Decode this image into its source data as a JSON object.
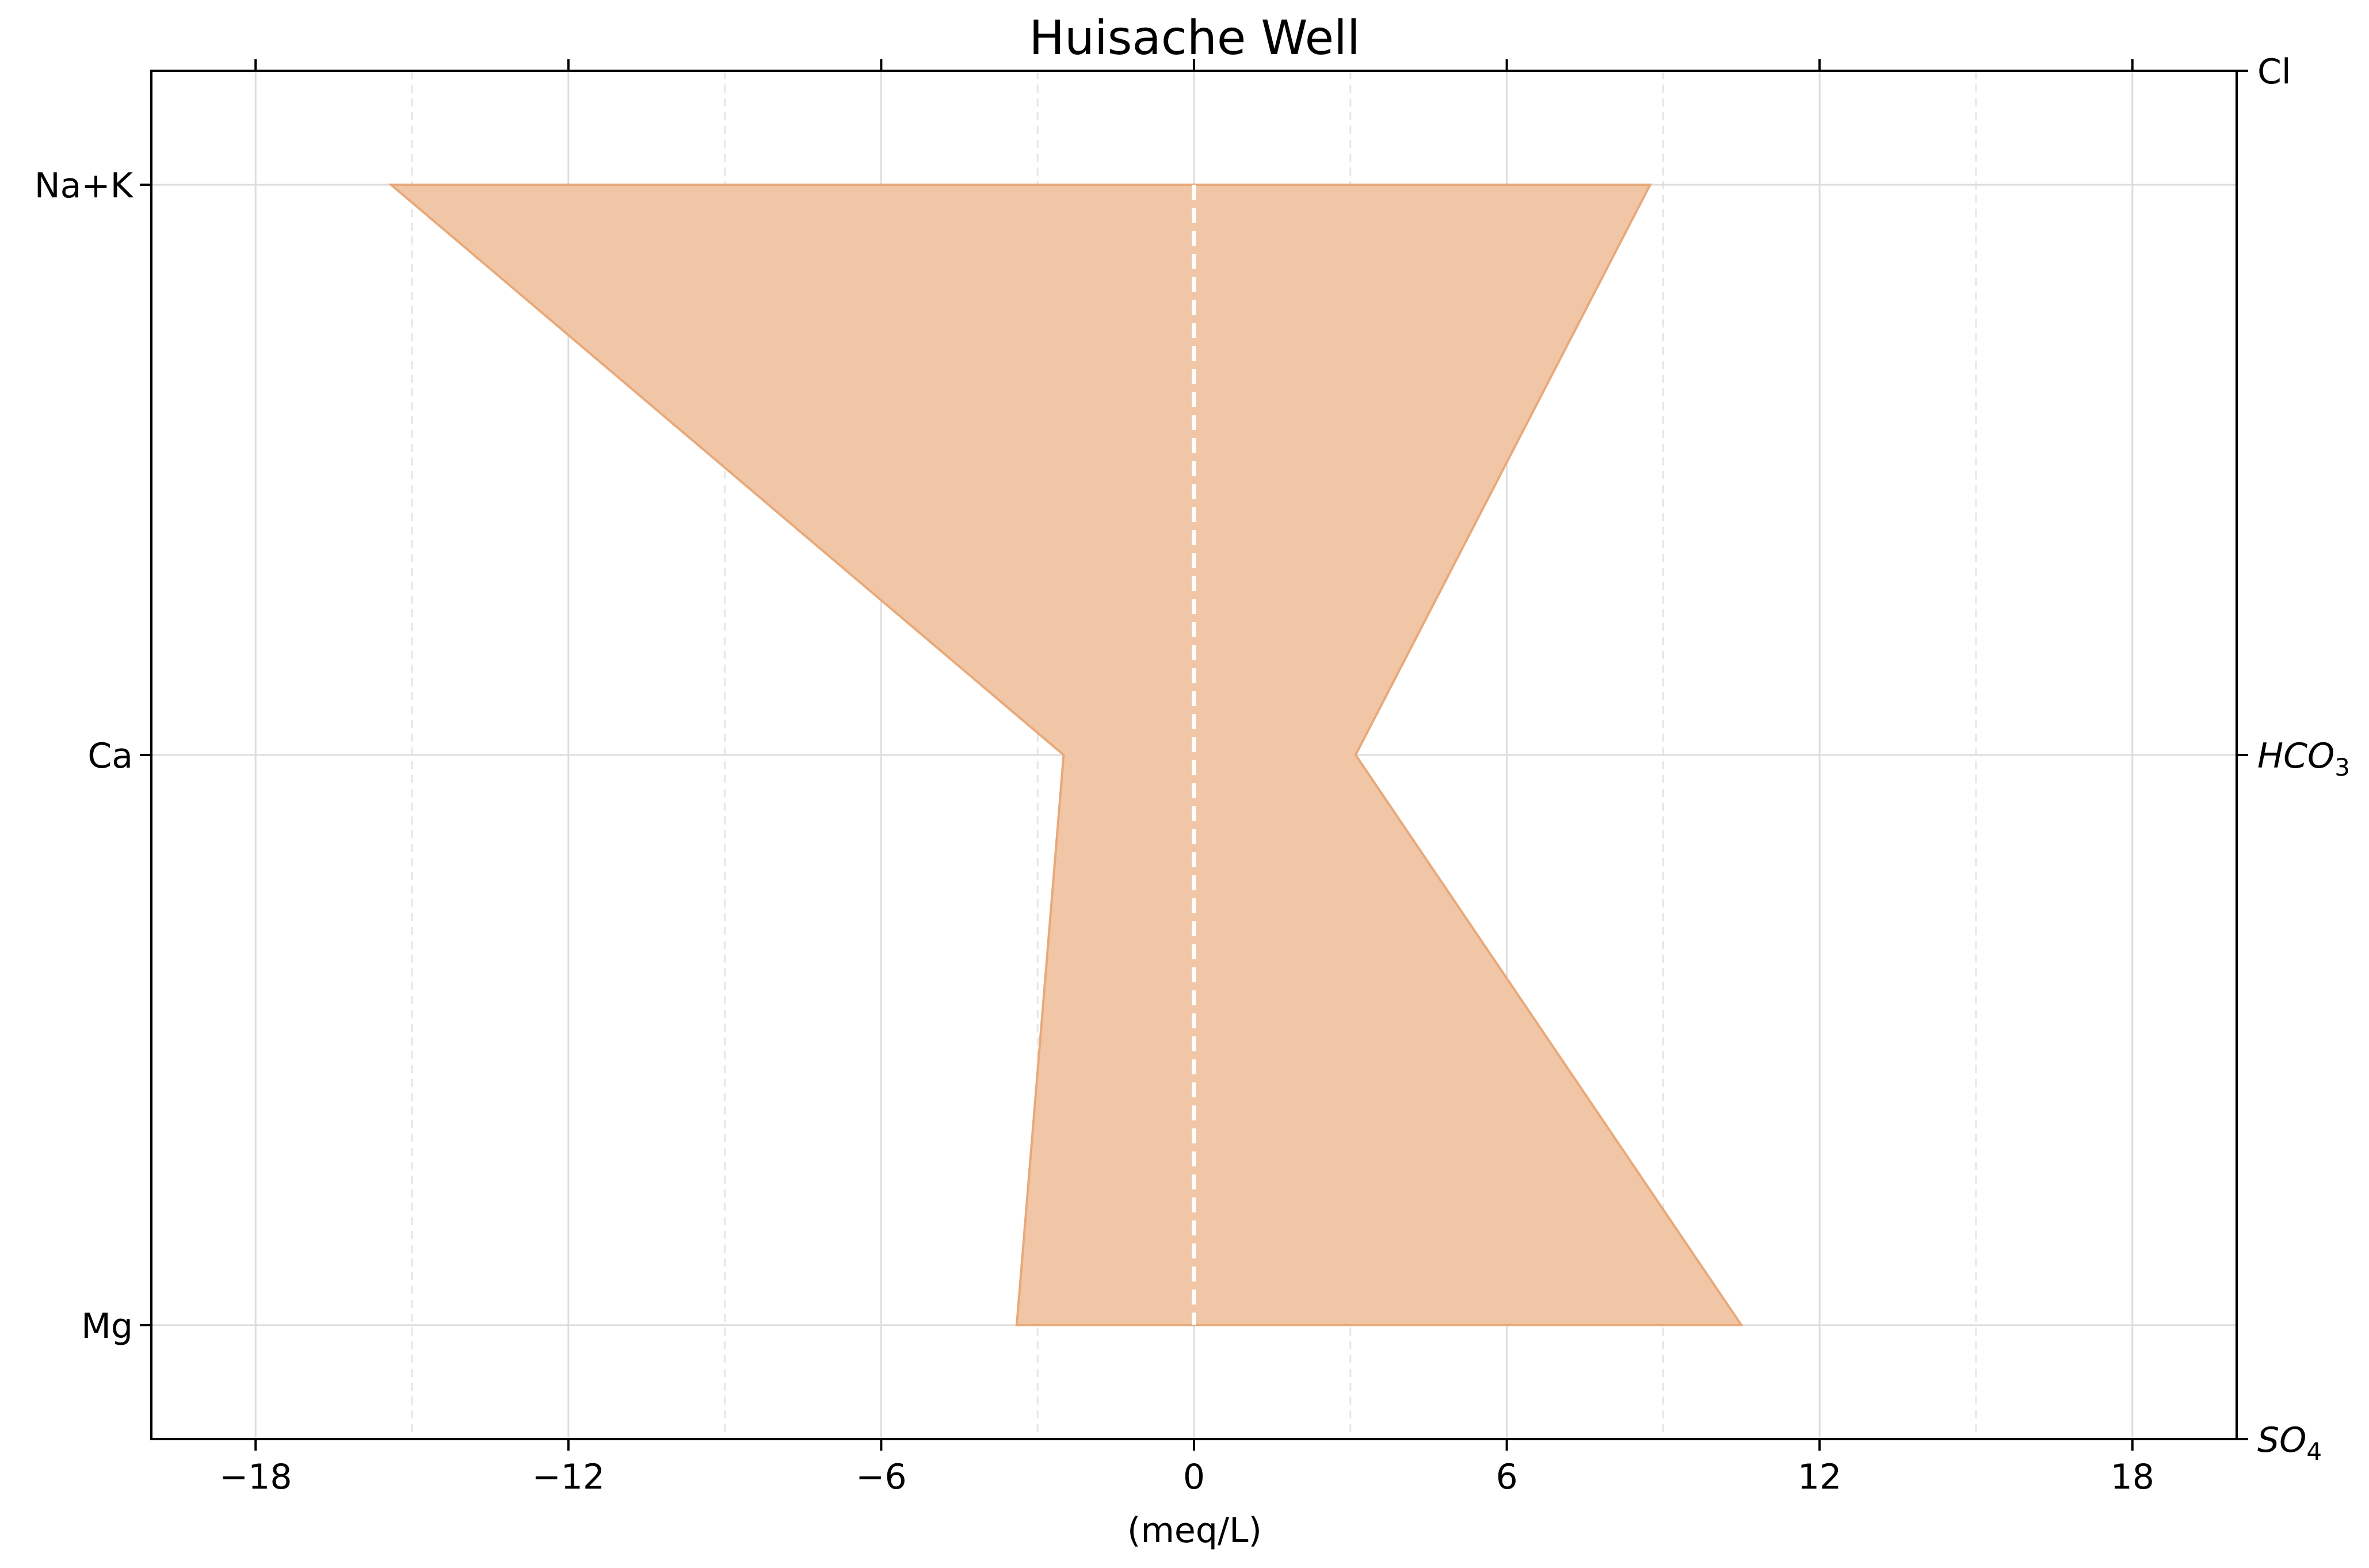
{
  "chart_data": {
    "type": "area",
    "title": "Huisache Well",
    "xlabel": "(meq/L)",
    "xlim": [
      -20,
      20
    ],
    "xticks": [
      -18,
      -12,
      -6,
      0,
      6,
      12,
      18
    ],
    "xtick_labels": [
      "−18",
      "−12",
      "−6",
      "0",
      "6",
      "12",
      "18"
    ],
    "x_minor_ticks": [
      -15,
      -9,
      -3,
      3,
      9,
      15
    ],
    "ylim": [
      -0.2,
      2.2
    ],
    "left_axis": {
      "labels": [
        "Mg",
        "Ca",
        "Na+K"
      ],
      "positions": [
        0,
        1,
        2
      ]
    },
    "right_axis": {
      "labels": [
        {
          "base": "SO",
          "sub": "4",
          "position": -0.2
        },
        {
          "base": "HCO",
          "sub": "3",
          "position": 1
        },
        {
          "base": "Cl",
          "sub": "",
          "position": 2.2
        }
      ]
    },
    "series": [
      {
        "values": [
          {
            "ion": "Na+K",
            "x": -15.4
          },
          {
            "ion": "Ca",
            "x": -2.5
          },
          {
            "ion": "Mg",
            "x": -3.4
          },
          {
            "ion": "SO4",
            "x": 10.5
          },
          {
            "ion": "HCO3",
            "x": 3.1
          },
          {
            "ion": "Cl",
            "x": 8.75
          }
        ],
        "fill": "#f0c6a6",
        "stroke": "#e8a97a"
      }
    ],
    "zero_line": {
      "x": 0,
      "style": "dashed",
      "color": "#ffffff"
    },
    "grid": true
  }
}
